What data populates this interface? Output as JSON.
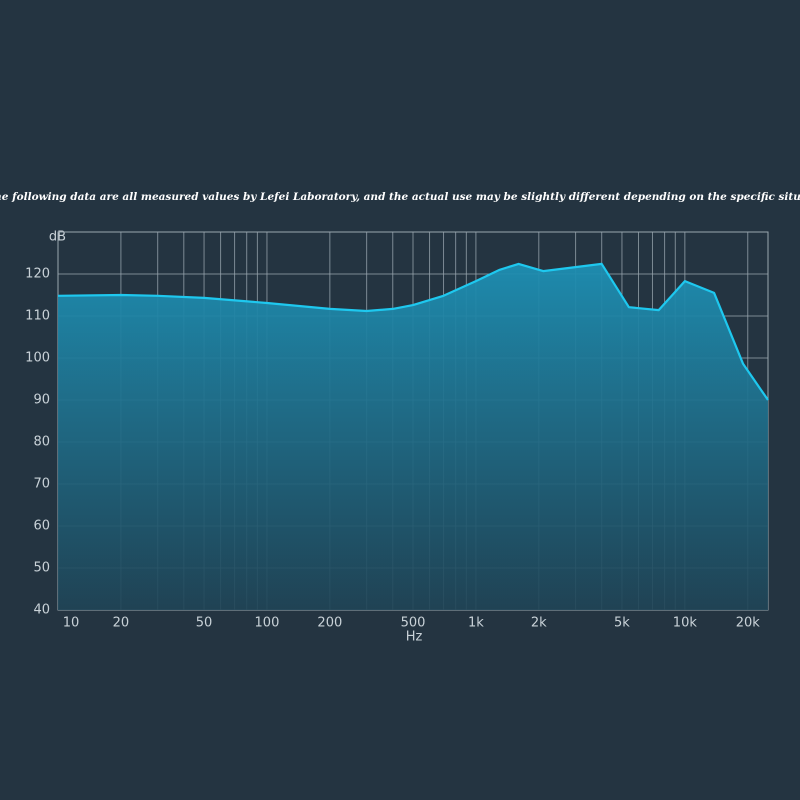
{
  "chart_data": {
    "type": "line",
    "note": "* The following data are all measured values by Lefei Laboratory, and the actual use may be slightly different depending on the specific situation.",
    "y_label": "dB",
    "x_label": "Hz",
    "x": [
      10,
      20,
      30,
      50,
      100,
      200,
      300,
      400,
      500,
      700,
      1000,
      1300,
      1600,
      2100,
      4000,
      5400,
      7500,
      10000,
      13800,
      19000,
      25000
    ],
    "series": [
      {
        "color": "#1ec8ef",
        "values": [
          114.8,
          115,
          114.8,
          114.3,
          113.1,
          111.7,
          111.2,
          111.7,
          112.6,
          114.8,
          118.3,
          121,
          122.4,
          120.7,
          122.4,
          112.1,
          111.4,
          118.3,
          115.5,
          98.6,
          90
        ]
      }
    ],
    "log_x": true,
    "xlim": [
      10,
      25000
    ],
    "ylim": [
      40,
      130
    ],
    "xticks": [
      10,
      20,
      50,
      100,
      200,
      500,
      {
        "value": 1000,
        "label": "1k"
      },
      {
        "value": 2000,
        "label": "2k"
      },
      {
        "value": 5000,
        "label": "5k"
      },
      {
        "value": 10000,
        "label": "10k"
      },
      {
        "value": 20000,
        "label": "20k"
      }
    ],
    "minor_xgrid": [
      30,
      40,
      60,
      70,
      80,
      90,
      300,
      400,
      600,
      700,
      800,
      900,
      3000,
      4000,
      6000,
      7000,
      8000,
      9000
    ],
    "yticks": [
      40,
      50,
      60,
      70,
      80,
      90,
      100,
      110,
      120
    ],
    "grid": true
  }
}
